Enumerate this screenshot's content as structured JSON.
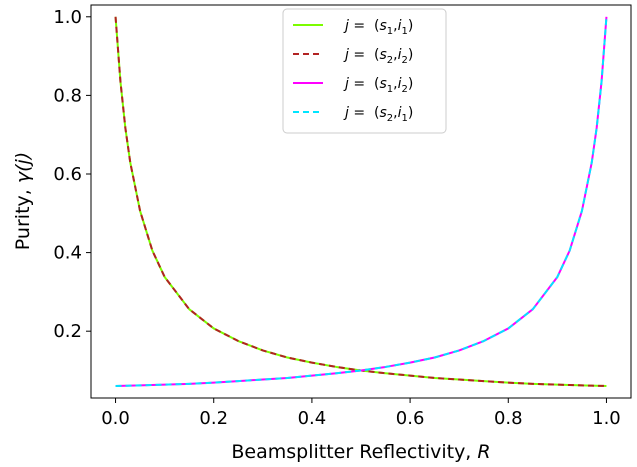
{
  "chart_data": {
    "type": "line",
    "xlabel_prefix": "Beamsplitter Reflectivity, ",
    "xlabel_var": "R",
    "ylabel_prefix": "Purity, ",
    "ylabel_var": "γ(j)",
    "xlim": [
      -0.05,
      1.05
    ],
    "ylim": [
      0.03,
      1.03
    ],
    "xticks": [
      "0.0",
      "0.2",
      "0.4",
      "0.6",
      "0.8",
      "1.0"
    ],
    "yticks": [
      "0.2",
      "0.4",
      "0.6",
      "0.8",
      "1.0"
    ],
    "x": [
      0.0,
      0.01,
      0.02,
      0.03,
      0.05,
      0.075,
      0.1,
      0.15,
      0.2,
      0.25,
      0.3,
      0.35,
      0.4,
      0.45,
      0.5,
      0.55,
      0.6,
      0.65,
      0.7,
      0.75,
      0.8,
      0.85,
      0.9,
      0.925,
      0.95,
      0.97,
      0.98,
      0.99,
      1.0
    ],
    "series": [
      {
        "name": "j = (s1,i1)",
        "color": "#7cfc00",
        "dash": "solid",
        "values": [
          1.0,
          0.835,
          0.717,
          0.629,
          0.506,
          0.405,
          0.338,
          0.256,
          0.207,
          0.175,
          0.151,
          0.133,
          0.12,
          0.109,
          0.1,
          0.093,
          0.087,
          0.081,
          0.077,
          0.073,
          0.069,
          0.066,
          0.064,
          0.063,
          0.062,
          0.0614,
          0.0611,
          0.0608,
          0.0606
        ]
      },
      {
        "name": "j = (s2,i2)",
        "color": "#b22222",
        "dash": "dashed",
        "values": [
          1.0,
          0.835,
          0.717,
          0.629,
          0.506,
          0.405,
          0.338,
          0.256,
          0.207,
          0.175,
          0.151,
          0.133,
          0.12,
          0.109,
          0.1,
          0.093,
          0.087,
          0.081,
          0.077,
          0.073,
          0.069,
          0.066,
          0.064,
          0.063,
          0.062,
          0.0614,
          0.0611,
          0.0608,
          0.0606
        ]
      },
      {
        "name": "j = (s1,i2)",
        "color": "#ff00ff",
        "dash": "solid",
        "values": [
          0.0606,
          0.0608,
          0.0611,
          0.0614,
          0.062,
          0.063,
          0.064,
          0.066,
          0.069,
          0.073,
          0.077,
          0.081,
          0.087,
          0.093,
          0.1,
          0.109,
          0.12,
          0.133,
          0.151,
          0.175,
          0.207,
          0.256,
          0.338,
          0.405,
          0.506,
          0.629,
          0.717,
          0.835,
          1.0
        ]
      },
      {
        "name": "j = (s2,i1)",
        "color": "#00e5ff",
        "dash": "dashed",
        "values": [
          0.0606,
          0.0608,
          0.0611,
          0.0614,
          0.062,
          0.063,
          0.064,
          0.066,
          0.069,
          0.073,
          0.077,
          0.081,
          0.087,
          0.093,
          0.1,
          0.109,
          0.12,
          0.133,
          0.151,
          0.175,
          0.207,
          0.256,
          0.338,
          0.405,
          0.506,
          0.629,
          0.717,
          0.835,
          1.0
        ]
      }
    ],
    "legend": {
      "placement": "upper center",
      "entries": [
        {
          "j": "j",
          "eq": " = ",
          "s": "s",
          "s_sub": "1",
          "i": "i",
          "i_sub": "1"
        },
        {
          "j": "j",
          "eq": " = ",
          "s": "s",
          "s_sub": "2",
          "i": "i",
          "i_sub": "2"
        },
        {
          "j": "j",
          "eq": " = ",
          "s": "s",
          "s_sub": "1",
          "i": "i",
          "i_sub": "2"
        },
        {
          "j": "j",
          "eq": " = ",
          "s": "s",
          "s_sub": "2",
          "i": "i",
          "i_sub": "1"
        }
      ]
    },
    "grid": false
  }
}
